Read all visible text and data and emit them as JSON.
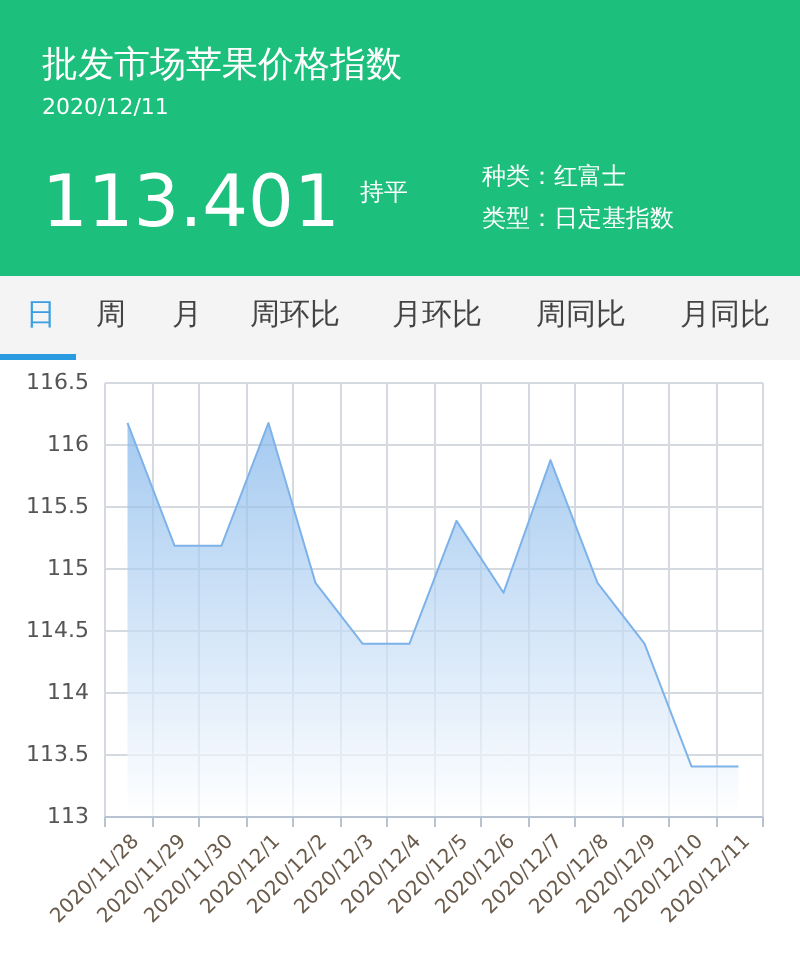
{
  "chart_data": {
    "type": "area",
    "title": "批发市场苹果价格指数",
    "subtitle": "2020/12/11",
    "annotations": [
      "113.401",
      "持平",
      "种类：红富士",
      "类型：日定基指数",
      "日",
      "周",
      "月",
      "周环比",
      "月环比",
      "周同比",
      "月同比"
    ],
    "categories": [
      "2020/11/28",
      "2020/11/29",
      "2020/11/30",
      "2020/12/1",
      "2020/12/2",
      "2020/12/3",
      "2020/12/4",
      "2020/12/5",
      "2020/12/6",
      "2020/12/7",
      "2020/12/8",
      "2020/12/9",
      "2020/12/10",
      "2020/12/11"
    ],
    "series": [
      {
        "color": "#7eb3ea",
        "values": [
          116.17,
          115.18,
          115.18,
          116.17,
          114.88,
          114.39,
          114.39,
          115.38,
          114.8,
          115.87,
          114.88,
          114.39,
          113.4,
          113.4
        ]
      }
    ],
    "ylim": [
      113,
      116.5
    ],
    "yticks": [
      113,
      113.5,
      114,
      114.5,
      115,
      115.5,
      116,
      116.5
    ],
    "grid": true
  }
}
